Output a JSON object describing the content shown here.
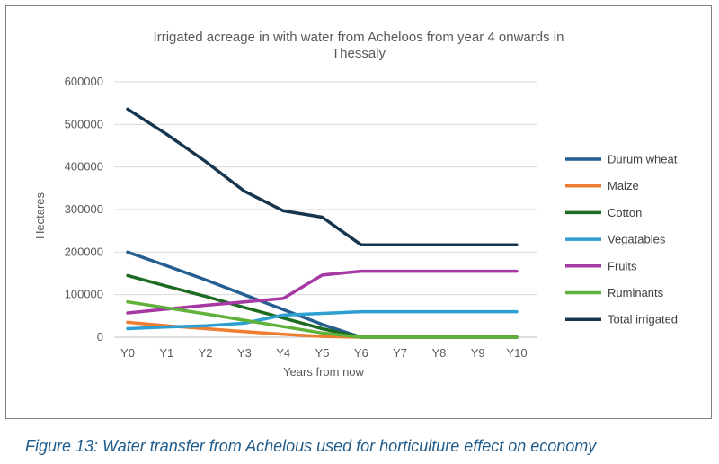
{
  "caption": "Figure 13: Water transfer from Achelous used for horticulture effect on economy",
  "chart_data": {
    "type": "line",
    "title_lines": [
      "Irrigated acreage in with water from Acheloos from year 4 onwards in",
      "Thessaly"
    ],
    "xlabel": "Years from now",
    "ylabel": "Hectares",
    "ylim": [
      0,
      600000
    ],
    "yticks": [
      0,
      100000,
      200000,
      300000,
      400000,
      500000,
      600000
    ],
    "ytick_labels": [
      "0",
      "100000",
      "200000",
      "300000",
      "400000",
      "500000",
      "600000"
    ],
    "grid": true,
    "legend_position": "right",
    "categories": [
      "Y0",
      "Y1",
      "Y2",
      "Y3",
      "Y4",
      "Y5",
      "Y6",
      "Y7",
      "Y8",
      "Y9",
      "Y10"
    ],
    "series": [
      {
        "name": "Durum wheat",
        "color": "#255e91",
        "values": [
          200000,
          168000,
          135000,
          100000,
          65000,
          30000,
          0,
          0,
          0,
          0,
          0
        ]
      },
      {
        "name": "Maize",
        "color": "#ed7d31",
        "values": [
          35000,
          27000,
          20000,
          13000,
          7000,
          2000,
          0,
          0,
          0,
          0,
          0
        ]
      },
      {
        "name": "Cotton",
        "color": "#1e6b23",
        "values": [
          145000,
          120000,
          96000,
          70000,
          45000,
          20000,
          0,
          0,
          0,
          0,
          0
        ]
      },
      {
        "name": "Vegatables",
        "color": "#2e9fd1",
        "values": [
          20000,
          24000,
          27000,
          33000,
          52000,
          56000,
          60000,
          60000,
          60000,
          60000,
          60000
        ]
      },
      {
        "name": "Fruits",
        "color": "#a638a3",
        "values": [
          57000,
          66000,
          75000,
          83000,
          91000,
          146000,
          155000,
          155000,
          155000,
          155000,
          155000
        ]
      },
      {
        "name": "Ruminants",
        "color": "#5fb13a",
        "values": [
          83000,
          69000,
          55000,
          40000,
          25000,
          10000,
          0,
          0,
          0,
          0,
          0
        ]
      },
      {
        "name": "Total irrigated",
        "color": "#16364f",
        "values": [
          536000,
          477000,
          413000,
          343000,
          297000,
          282000,
          217000,
          217000,
          217000,
          217000,
          217000
        ]
      }
    ]
  }
}
